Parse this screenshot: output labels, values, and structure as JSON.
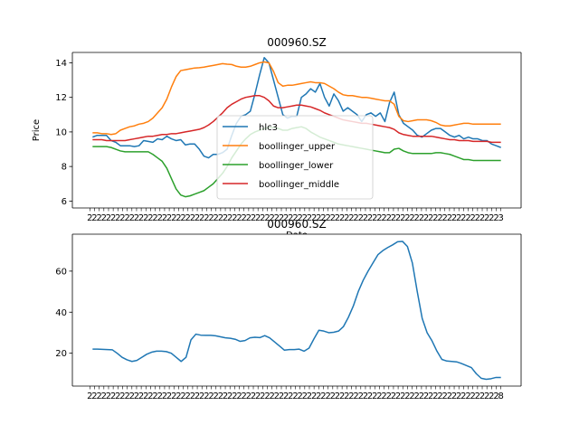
{
  "chart_data": [
    {
      "type": "line",
      "title": "000960.SZ",
      "xlabel": "Date",
      "ylabel": "Price",
      "ylim": [
        5.6,
        14.6
      ],
      "yticks": [
        6,
        8,
        10,
        12,
        14
      ],
      "x_tick_labels": [
        "2",
        "2",
        "2",
        "2",
        "2",
        "2",
        "2",
        "2",
        "2",
        "2",
        "2",
        "2",
        "2",
        "2",
        "2",
        "2",
        "2",
        "2",
        "2",
        "2",
        "2",
        "2",
        "2",
        "2",
        "2",
        "2",
        "2",
        "2",
        "2",
        "2",
        "2",
        "2",
        "2",
        "2",
        "2",
        "2",
        "2",
        "2",
        "2",
        "2",
        "2",
        "2",
        "2",
        "2",
        "2",
        "2",
        "2",
        "2",
        "2",
        "2",
        "2",
        "2",
        "2",
        "2",
        "2",
        "2",
        "2",
        "2",
        "2",
        "2",
        "2",
        "2",
        "2",
        "2",
        "2",
        "2",
        "2",
        "2",
        "2",
        "2",
        "2",
        "2",
        "2",
        "2",
        "2",
        "2",
        "2",
        "2",
        "2",
        "2",
        "2",
        "2",
        "2",
        "2",
        "2",
        "2",
        "2",
        "2",
        "3"
      ],
      "legend_position": "center",
      "series": [
        {
          "name": "hlc3",
          "color": "#1f77b4",
          "values": [
            9.7,
            9.8,
            9.8,
            9.8,
            9.5,
            9.4,
            9.2,
            9.2,
            9.2,
            9.15,
            9.2,
            9.5,
            9.45,
            9.4,
            9.6,
            9.55,
            9.75,
            9.6,
            9.5,
            9.55,
            9.25,
            9.3,
            9.3,
            9.0,
            8.6,
            8.5,
            8.7,
            8.7,
            8.8,
            9.0,
            9.8,
            10.5,
            10.9,
            11.0,
            11.2,
            12.2,
            13.3,
            14.3,
            14.0,
            13.0,
            12.0,
            11.0,
            10.8,
            10.9,
            10.9,
            12.0,
            12.2,
            12.5,
            12.3,
            12.8,
            12.0,
            11.5,
            12.2,
            11.8,
            11.2,
            11.4,
            11.2,
            11.0,
            10.6,
            11.0,
            11.1,
            10.9,
            11.1,
            10.6,
            11.7,
            12.3,
            11.0,
            10.5,
            10.3,
            10.1,
            9.8,
            9.7,
            9.9,
            10.1,
            10.2,
            10.2,
            10.0,
            9.8,
            9.7,
            9.8,
            9.6,
            9.7,
            9.6,
            9.6,
            9.5,
            9.5,
            9.3,
            9.2,
            9.1
          ]
        },
        {
          "name": "boollinger_upper",
          "color": "#ff7f0e",
          "values": [
            9.95,
            9.95,
            9.9,
            9.9,
            9.85,
            9.9,
            10.1,
            10.2,
            10.3,
            10.35,
            10.45,
            10.5,
            10.6,
            10.8,
            11.1,
            11.4,
            11.9,
            12.6,
            13.2,
            13.55,
            13.6,
            13.65,
            13.7,
            13.72,
            13.75,
            13.8,
            13.85,
            13.9,
            13.95,
            13.92,
            13.9,
            13.8,
            13.75,
            13.75,
            13.8,
            13.9,
            14.0,
            14.05,
            14.0,
            13.5,
            12.85,
            12.65,
            12.7,
            12.7,
            12.75,
            12.8,
            12.85,
            12.9,
            12.85,
            12.85,
            12.8,
            12.65,
            12.5,
            12.3,
            12.15,
            12.1,
            12.1,
            12.05,
            12.0,
            12.0,
            11.95,
            11.9,
            11.85,
            11.8,
            11.8,
            11.6,
            10.9,
            10.65,
            10.6,
            10.65,
            10.7,
            10.7,
            10.7,
            10.65,
            10.55,
            10.4,
            10.35,
            10.35,
            10.4,
            10.45,
            10.5,
            10.5,
            10.45,
            10.45,
            10.45,
            10.45,
            10.45,
            10.45,
            10.45
          ]
        },
        {
          "name": "boollinger_lower",
          "color": "#2ca02c",
          "values": [
            9.15,
            9.15,
            9.15,
            9.15,
            9.1,
            9.0,
            8.9,
            8.85,
            8.85,
            8.85,
            8.85,
            8.85,
            8.85,
            8.7,
            8.5,
            8.3,
            7.9,
            7.3,
            6.7,
            6.35,
            6.25,
            6.3,
            6.4,
            6.5,
            6.6,
            6.8,
            7.0,
            7.3,
            7.6,
            8.0,
            8.5,
            8.9,
            9.3,
            9.6,
            9.85,
            10.0,
            10.1,
            10.2,
            10.25,
            10.25,
            10.2,
            10.1,
            10.1,
            10.2,
            10.25,
            10.3,
            10.2,
            10.0,
            9.85,
            9.7,
            9.6,
            9.5,
            9.4,
            9.3,
            9.25,
            9.2,
            9.15,
            9.1,
            9.05,
            9.0,
            8.95,
            8.9,
            8.85,
            8.8,
            8.8,
            9.0,
            9.05,
            8.9,
            8.8,
            8.75,
            8.75,
            8.75,
            8.75,
            8.75,
            8.8,
            8.8,
            8.75,
            8.7,
            8.6,
            8.5,
            8.4,
            8.4,
            8.35,
            8.35,
            8.35,
            8.35,
            8.35,
            8.35,
            8.35
          ]
        },
        {
          "name": "boollinger_middle",
          "color": "#d62728",
          "values": [
            9.55,
            9.55,
            9.55,
            9.5,
            9.5,
            9.5,
            9.5,
            9.5,
            9.55,
            9.6,
            9.65,
            9.7,
            9.75,
            9.75,
            9.8,
            9.85,
            9.85,
            9.9,
            9.9,
            9.95,
            10.0,
            10.05,
            10.1,
            10.15,
            10.25,
            10.4,
            10.6,
            10.85,
            11.1,
            11.4,
            11.6,
            11.75,
            11.9,
            12.0,
            12.05,
            12.1,
            12.1,
            12.0,
            11.8,
            11.5,
            11.4,
            11.4,
            11.45,
            11.5,
            11.55,
            11.55,
            11.5,
            11.45,
            11.35,
            11.25,
            11.1,
            11.0,
            10.9,
            10.8,
            10.7,
            10.65,
            10.6,
            10.55,
            10.5,
            10.5,
            10.45,
            10.4,
            10.35,
            10.3,
            10.25,
            10.15,
            9.95,
            9.85,
            9.8,
            9.75,
            9.75,
            9.75,
            9.75,
            9.75,
            9.7,
            9.65,
            9.6,
            9.55,
            9.55,
            9.5,
            9.5,
            9.5,
            9.45,
            9.45,
            9.45,
            9.45,
            9.4,
            9.4,
            9.4
          ]
        }
      ]
    },
    {
      "type": "line",
      "title": "000960.SZ",
      "xlabel": "",
      "ylabel": "",
      "ylim": [
        4,
        78
      ],
      "yticks": [
        20,
        40,
        60
      ],
      "x_tick_labels": [
        "2",
        "2",
        "2",
        "2",
        "2",
        "2",
        "2",
        "2",
        "2",
        "2",
        "2",
        "2",
        "2",
        "2",
        "2",
        "2",
        "2",
        "2",
        "2",
        "2",
        "2",
        "2",
        "2",
        "2",
        "2",
        "2",
        "2",
        "2",
        "2",
        "2",
        "2",
        "2",
        "2",
        "2",
        "2",
        "2",
        "2",
        "2",
        "2",
        "2",
        "2",
        "2",
        "2",
        "2",
        "2",
        "2",
        "2",
        "2",
        "2",
        "2",
        "2",
        "2",
        "2",
        "2",
        "2",
        "2",
        "2",
        "2",
        "2",
        "2",
        "2",
        "2",
        "2",
        "2",
        "2",
        "2",
        "2",
        "2",
        "2",
        "2",
        "2",
        "2",
        "2",
        "2",
        "2",
        "2",
        "2",
        "2",
        "2",
        "2",
        "2",
        "2",
        "2",
        "2",
        "2",
        "2",
        "2",
        "2",
        "8"
      ],
      "series": [
        {
          "name": "",
          "color": "#1f77b4",
          "values": [
            22.0,
            22.0,
            21.9,
            21.8,
            21.7,
            20.0,
            18.0,
            16.8,
            16.0,
            16.5,
            18.0,
            19.5,
            20.5,
            21.0,
            21.0,
            20.8,
            20.0,
            18.0,
            16.0,
            18.0,
            26.5,
            29.3,
            28.8,
            28.7,
            28.7,
            28.5,
            28.0,
            27.5,
            27.3,
            26.8,
            25.8,
            26.2,
            27.5,
            27.8,
            27.6,
            28.6,
            27.5,
            25.5,
            23.5,
            21.5,
            21.8,
            21.8,
            22.0,
            21.0,
            22.5,
            27.0,
            31.2,
            30.8,
            30.0,
            30.2,
            30.8,
            33.0,
            37.5,
            43.0,
            50.0,
            55.5,
            60.0,
            64.0,
            68.0,
            70.0,
            71.5,
            72.8,
            74.3,
            74.5,
            72.0,
            64.0,
            50.0,
            37.0,
            30.0,
            26.0,
            21.0,
            17.0,
            16.2,
            16.0,
            15.8,
            15.0,
            14.0,
            13.0,
            10.0,
            7.8,
            7.3,
            7.6,
            8.2,
            8.2
          ]
        }
      ]
    }
  ]
}
